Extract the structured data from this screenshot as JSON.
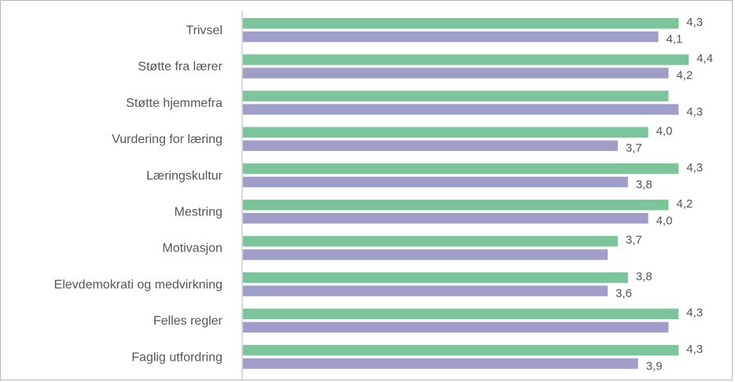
{
  "chart_data": {
    "type": "bar",
    "orientation": "horizontal",
    "categories": [
      "Trivsel",
      "Støtte fra lærer",
      "Støtte hjemmefra",
      "Vurdering for læring",
      "Læringskultur",
      "Mestring",
      "Motivasjon",
      "Elevdemokrati og medvirkning",
      "Felles regler",
      "Faglig utfordring"
    ],
    "series": [
      {
        "color": "#7cc49a",
        "values": [
          4.3,
          4.4,
          4.2,
          4.0,
          4.3,
          4.2,
          3.7,
          3.8,
          4.3,
          4.3
        ],
        "labels": [
          "4,3",
          "4,4",
          "",
          "4,0",
          "4,3",
          "4,2",
          "3,7",
          "3,8",
          "4,3",
          "4,3"
        ]
      },
      {
        "color": "#9e9ec8",
        "values": [
          4.1,
          4.2,
          4.3,
          3.7,
          3.8,
          4.0,
          3.6,
          3.6,
          4.2,
          3.9
        ],
        "labels": [
          "4,1",
          "4,2",
          "4,3",
          "3,7",
          "3,8",
          "4,0",
          "",
          "3,6",
          "",
          "3,9"
        ]
      }
    ],
    "title": "",
    "xlabel": "",
    "ylabel": "",
    "axis_color": "#cfcfcf",
    "grid": false,
    "legend": "none"
  }
}
